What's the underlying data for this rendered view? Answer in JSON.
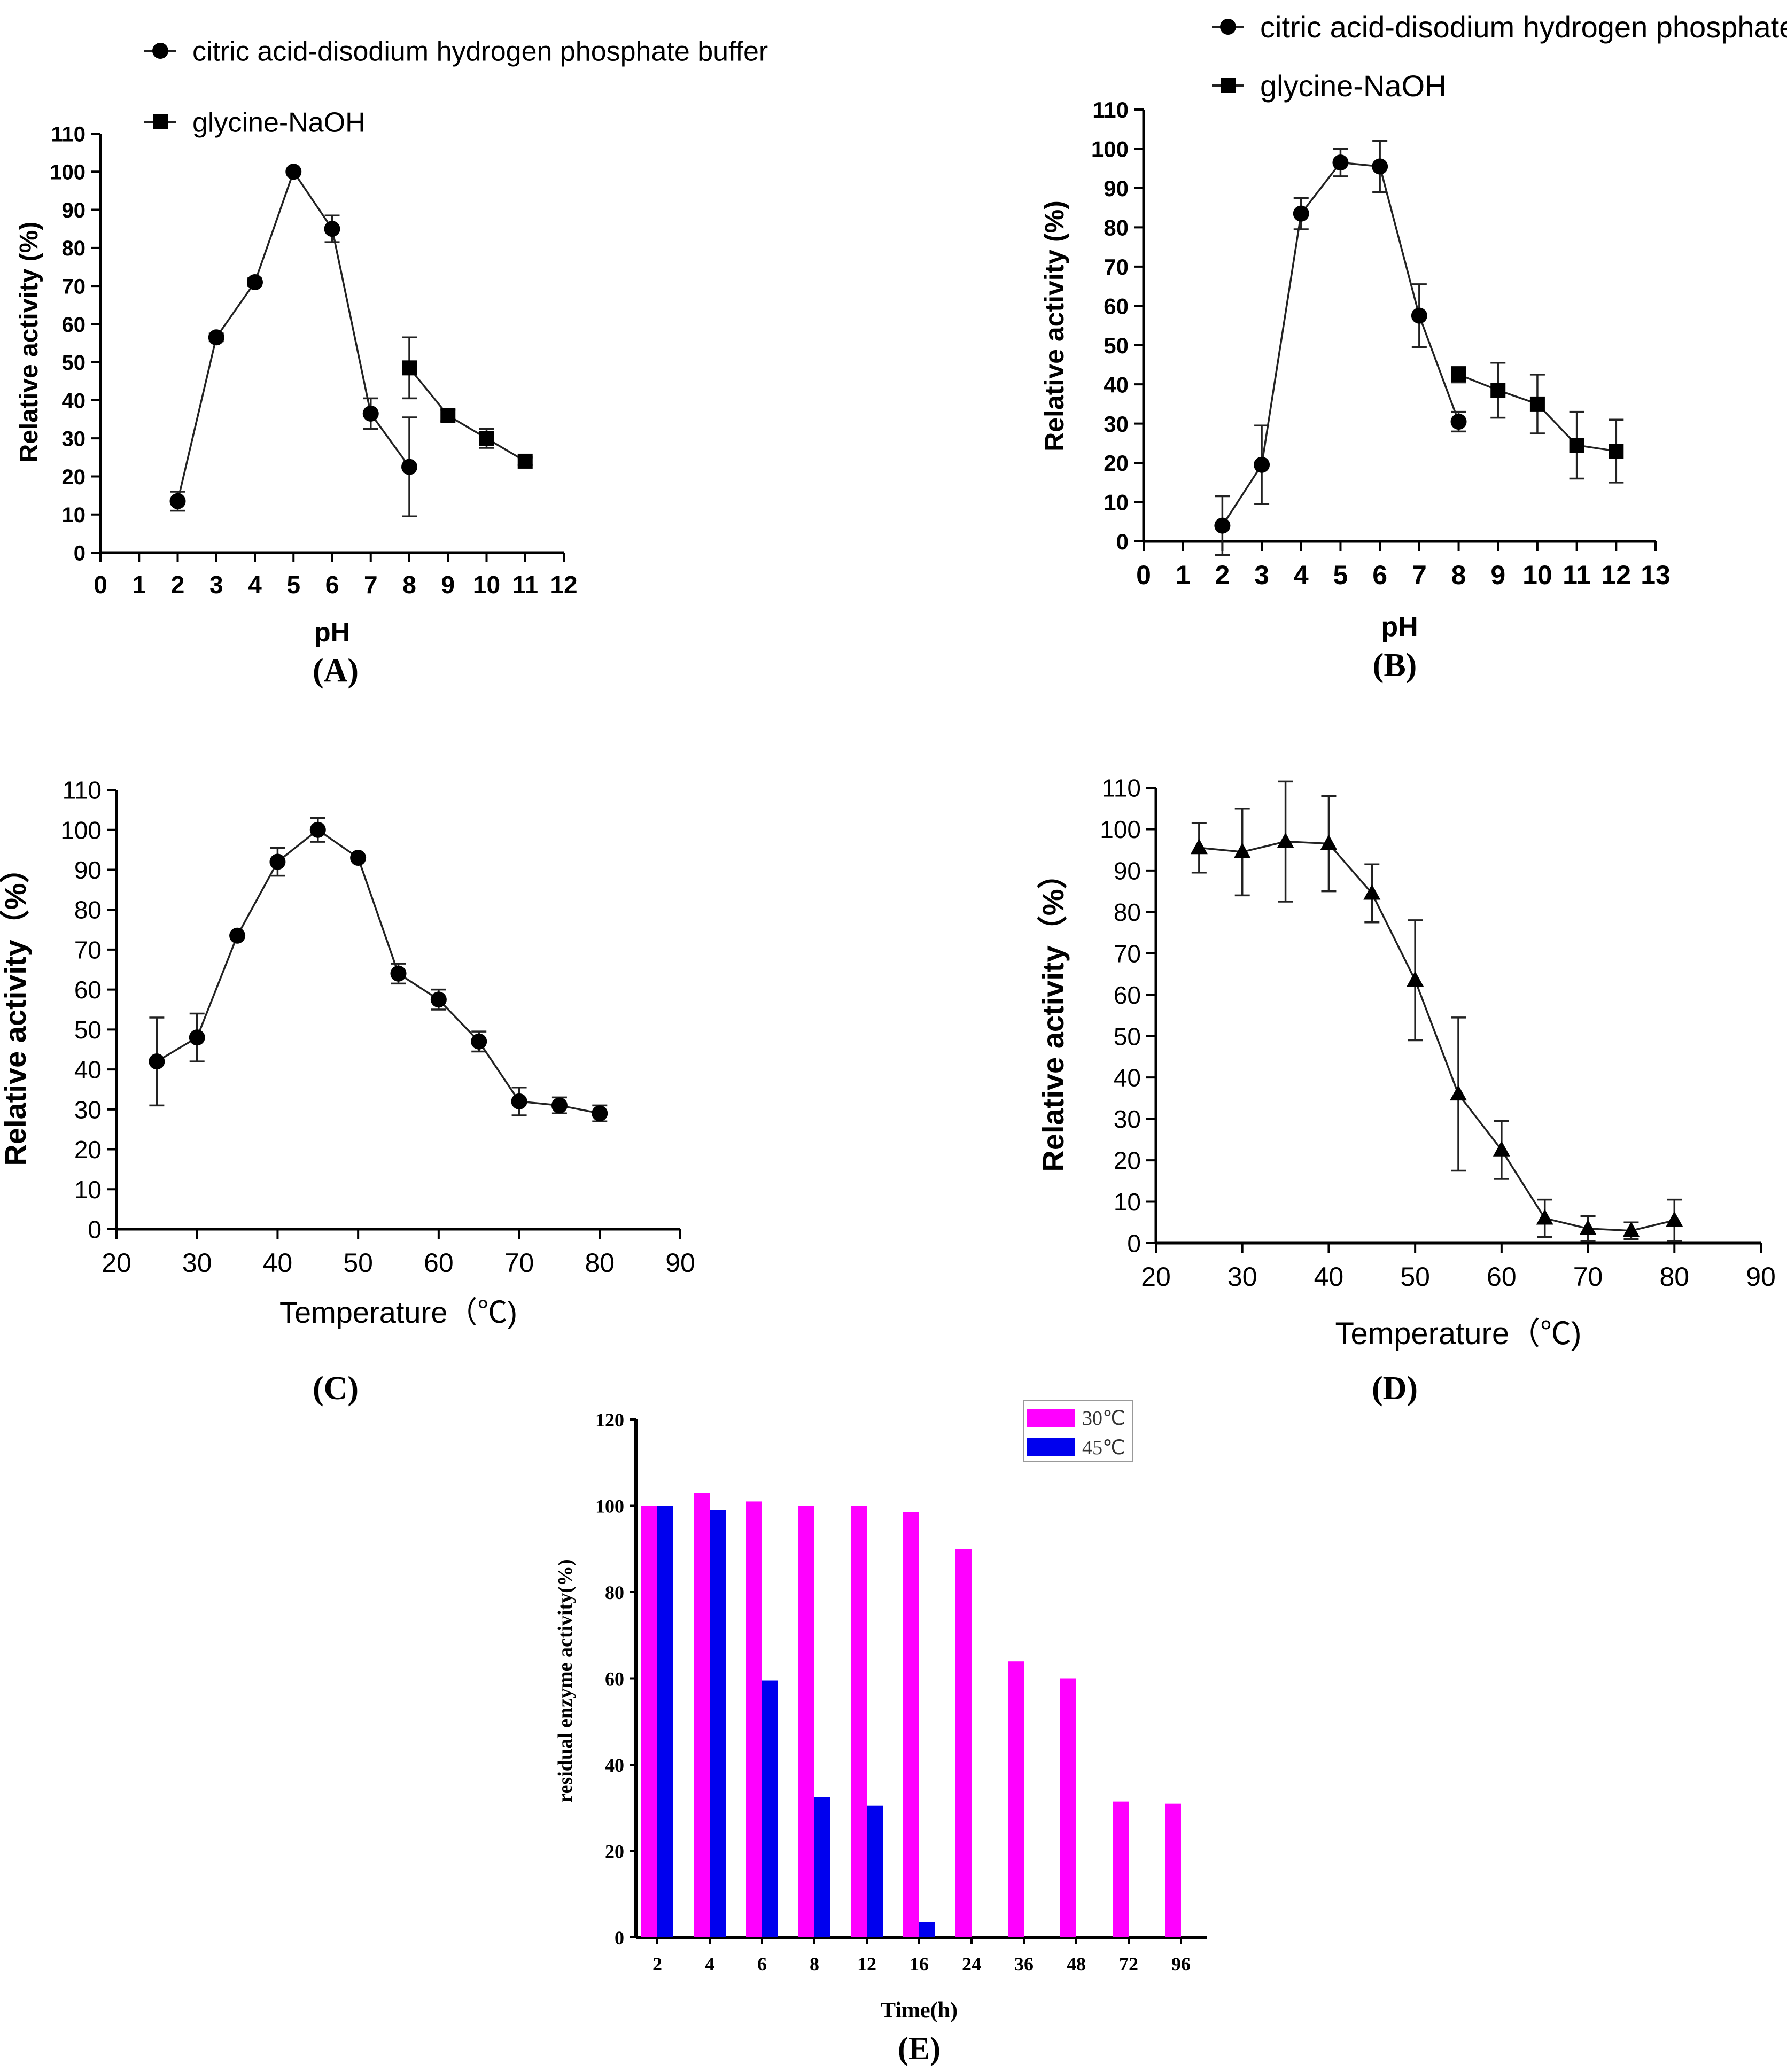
{
  "chart_data": [
    {
      "panel_label": "(A)",
      "type": "line",
      "xlabel": "pH",
      "ylabel": "Relative activity (%)",
      "xlim": [
        0,
        12
      ],
      "ylim": [
        0,
        110
      ],
      "xticks": [
        "0",
        "1",
        "2",
        "3",
        "4",
        "5",
        "6",
        "7",
        "8",
        "9",
        "10",
        "11",
        "12"
      ],
      "yticks": [
        "0",
        "10",
        "20",
        "30",
        "40",
        "50",
        "60",
        "70",
        "80",
        "90",
        "100",
        "110"
      ],
      "series": [
        {
          "name": "citric acid-disodium hydrogen phosphate buffer",
          "marker": "circle",
          "x": [
            2,
            3,
            4,
            5,
            6,
            7,
            8
          ],
          "values": [
            13.5,
            56.5,
            71,
            100,
            85,
            36.5,
            22.5
          ],
          "err": [
            2.5,
            1,
            1,
            0.5,
            3.5,
            4,
            13
          ]
        },
        {
          "name": "glycine-NaOH",
          "marker": "square",
          "x": [
            8,
            9,
            10,
            11
          ],
          "values": [
            48.5,
            36,
            30,
            24
          ],
          "err": [
            8,
            1.5,
            2.5,
            1
          ]
        }
      ]
    },
    {
      "panel_label": "(B)",
      "type": "line",
      "xlabel": "pH",
      "ylabel": "Relative activity (%)",
      "xlim": [
        0,
        13
      ],
      "ylim": [
        0,
        110
      ],
      "xticks": [
        "0",
        "1",
        "2",
        "3",
        "4",
        "5",
        "6",
        "7",
        "8",
        "9",
        "10",
        "11",
        "12",
        "13"
      ],
      "yticks": [
        "0",
        "10",
        "20",
        "30",
        "40",
        "50",
        "60",
        "70",
        "80",
        "90",
        "100",
        "110"
      ],
      "series": [
        {
          "name": "citric acid-disodium hydrogen phosphate",
          "marker": "circle",
          "x": [
            2,
            3,
            4,
            5,
            6,
            7,
            8
          ],
          "values": [
            4,
            19.5,
            83.5,
            96.5,
            95.5,
            57.5,
            30.5
          ],
          "err": [
            7.5,
            10,
            4,
            3.5,
            6.5,
            8,
            2.5
          ]
        },
        {
          "name": "glycine-NaOH",
          "marker": "square",
          "x": [
            8,
            9,
            10,
            11,
            12
          ],
          "values": [
            42.5,
            38.5,
            35,
            24.5,
            23
          ],
          "err": [
            2,
            7,
            7.5,
            8.5,
            8
          ]
        }
      ]
    },
    {
      "panel_label": "(C)",
      "type": "line",
      "xlabel": "Temperature（℃)",
      "ylabel": "Relative activity（%）",
      "xlim": [
        20,
        90
      ],
      "ylim": [
        0,
        110
      ],
      "xticks": [
        "20",
        "30",
        "40",
        "50",
        "60",
        "70",
        "80",
        "90"
      ],
      "yticks": [
        "0",
        "10",
        "20",
        "30",
        "40",
        "50",
        "60",
        "70",
        "80",
        "90",
        "100",
        "110"
      ],
      "series": [
        {
          "name": "",
          "marker": "circle",
          "x": [
            25,
            30,
            35,
            40,
            45,
            50,
            55,
            60,
            65,
            70,
            75,
            80
          ],
          "values": [
            42,
            48,
            73.5,
            92,
            100,
            93,
            64,
            57.5,
            47,
            32,
            31,
            29
          ],
          "err": [
            11,
            6,
            0.5,
            3.5,
            3,
            0.5,
            2.5,
            2.5,
            2.5,
            3.5,
            2,
            2
          ]
        }
      ]
    },
    {
      "panel_label": "(D)",
      "type": "line",
      "xlabel": "Temperature（℃)",
      "ylabel": "Relative activity（%）",
      "xlim": [
        20,
        90
      ],
      "ylim": [
        0,
        110
      ],
      "xticks": [
        "20",
        "30",
        "40",
        "50",
        "60",
        "70",
        "80",
        "90"
      ],
      "yticks": [
        "0",
        "10",
        "20",
        "30",
        "40",
        "50",
        "60",
        "70",
        "80",
        "90",
        "100",
        "110"
      ],
      "series": [
        {
          "name": "",
          "marker": "triangle",
          "x": [
            25,
            30,
            35,
            40,
            45,
            50,
            55,
            60,
            65,
            70,
            75,
            80
          ],
          "values": [
            95.5,
            94.5,
            97,
            96.5,
            84.5,
            63.5,
            36,
            22.5,
            6,
            3.5,
            3,
            5.5
          ],
          "err": [
            6,
            10.5,
            14.5,
            11.5,
            7,
            14.5,
            18.5,
            7,
            4.5,
            3,
            2,
            5
          ]
        }
      ]
    },
    {
      "panel_label": "(E)",
      "type": "bar",
      "xlabel": "Time(h)",
      "ylabel": "residual enzyme activity(%)",
      "ylim": [
        0,
        120
      ],
      "yticks": [
        "0",
        "20",
        "40",
        "60",
        "80",
        "100",
        "120"
      ],
      "categories": [
        "2",
        "4",
        "6",
        "8",
        "12",
        "16",
        "24",
        "36",
        "48",
        "72",
        "96"
      ],
      "series": [
        {
          "name": "30℃",
          "color": "#ff00ff",
          "values": [
            100,
            103,
            101,
            100,
            100,
            98.5,
            90,
            64,
            60,
            31.5,
            31
          ]
        },
        {
          "name": "45℃",
          "color": "#0000ee",
          "values": [
            100,
            99,
            59.5,
            32.5,
            30.5,
            3.5,
            null,
            null,
            null,
            null,
            null
          ]
        }
      ]
    }
  ]
}
